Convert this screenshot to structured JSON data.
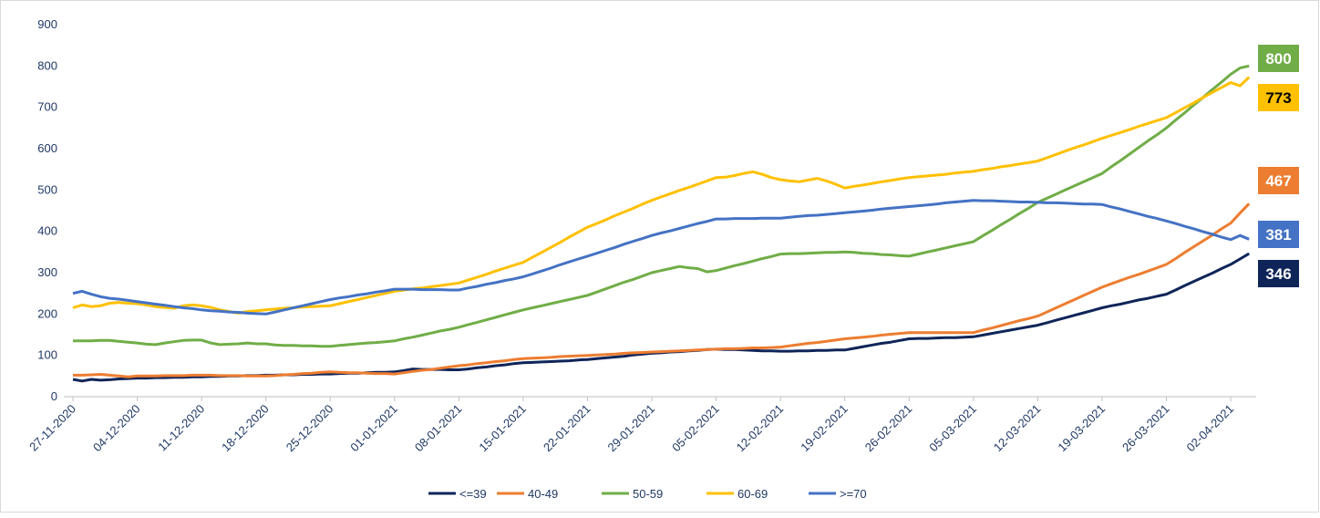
{
  "chart_data": {
    "type": "line",
    "categories": [
      "27-11-2020",
      null,
      null,
      null,
      null,
      null,
      null,
      "04-12-2020",
      null,
      null,
      null,
      null,
      null,
      null,
      "11-12-2020",
      null,
      null,
      null,
      null,
      null,
      null,
      "18-12-2020",
      null,
      null,
      null,
      null,
      null,
      null,
      "25-12-2020",
      null,
      null,
      null,
      null,
      null,
      null,
      "01-01-2021",
      null,
      null,
      null,
      null,
      null,
      null,
      "08-01-2021",
      null,
      null,
      null,
      null,
      null,
      null,
      "15-01-2021",
      null,
      null,
      null,
      null,
      null,
      null,
      "22-01-2021",
      null,
      null,
      null,
      null,
      null,
      null,
      "29-01-2021",
      null,
      null,
      null,
      null,
      null,
      null,
      "05-02-2021",
      null,
      null,
      null,
      null,
      null,
      null,
      "12-02-2021",
      null,
      null,
      null,
      null,
      null,
      null,
      "19-02-2021",
      null,
      null,
      null,
      null,
      null,
      null,
      "26-02-2021",
      null,
      null,
      null,
      null,
      null,
      null,
      "05-03-2021",
      null,
      null,
      null,
      null,
      null,
      null,
      "12-03-2021",
      null,
      null,
      null,
      null,
      null,
      null,
      "19-03-2021",
      null,
      null,
      null,
      null,
      null,
      null,
      "26-03-2021",
      null,
      null,
      null,
      null,
      null,
      null,
      "02-04-2021",
      null,
      null
    ],
    "series": [
      {
        "name": "<=39",
        "color": "#0f2559",
        "values": [
          42,
          38,
          42,
          40,
          41,
          43,
          44,
          45,
          45,
          46,
          46,
          47,
          47,
          48,
          48,
          49,
          49,
          50,
          50,
          51,
          51,
          52,
          52,
          53,
          53,
          54,
          54,
          55,
          55,
          56,
          57,
          57,
          58,
          59,
          59,
          60,
          63,
          67,
          66,
          66,
          66,
          65,
          65,
          67,
          70,
          72,
          75,
          77,
          80,
          82,
          83,
          84,
          85,
          86,
          87,
          89,
          90,
          92,
          94,
          96,
          98,
          101,
          103,
          105,
          106,
          108,
          109,
          111,
          112,
          114,
          115,
          114,
          114,
          113,
          112,
          111,
          111,
          110,
          110,
          111,
          111,
          112,
          112,
          113,
          113,
          117,
          121,
          125,
          129,
          132,
          136,
          140,
          141,
          141,
          142,
          143,
          143,
          144,
          145,
          149,
          153,
          157,
          161,
          165,
          169,
          173,
          179,
          185,
          191,
          197,
          203,
          209,
          215,
          220,
          224,
          229,
          234,
          238,
          243,
          248,
          258,
          269,
          279,
          289,
          299,
          310,
          320,
          333,
          346
        ]
      },
      {
        "name": "40-49",
        "color": "#ed7d31",
        "values": [
          52,
          52,
          53,
          54,
          52,
          50,
          48,
          50,
          50,
          50,
          51,
          51,
          51,
          52,
          52,
          52,
          51,
          51,
          51,
          50,
          50,
          50,
          51,
          53,
          54,
          56,
          57,
          59,
          60,
          59,
          58,
          58,
          57,
          56,
          56,
          55,
          58,
          61,
          64,
          66,
          69,
          72,
          75,
          77,
          80,
          82,
          85,
          87,
          90,
          92,
          93,
          94,
          95,
          97,
          98,
          99,
          100,
          101,
          102,
          103,
          105,
          106,
          107,
          108,
          109,
          110,
          111,
          112,
          113,
          114,
          115,
          116,
          116,
          117,
          118,
          118,
          119,
          120,
          123,
          126,
          129,
          131,
          134,
          137,
          140,
          142,
          144,
          146,
          149,
          151,
          153,
          155,
          155,
          155,
          155,
          155,
          155,
          155,
          155,
          161,
          166,
          172,
          178,
          184,
          189,
          195,
          205,
          215,
          225,
          235,
          245,
          255,
          265,
          273,
          281,
          289,
          296,
          304,
          312,
          320,
          334,
          349,
          363,
          377,
          391,
          406,
          420,
          444,
          467
        ]
      },
      {
        "name": "50-59",
        "color": "#70ad47",
        "values": [
          135,
          135,
          135,
          136,
          136,
          134,
          132,
          130,
          127,
          126,
          130,
          133,
          136,
          137,
          137,
          130,
          126,
          127,
          128,
          130,
          128,
          128,
          125,
          124,
          124,
          123,
          123,
          122,
          122,
          124,
          126,
          128,
          130,
          131,
          133,
          135,
          140,
          144,
          149,
          154,
          159,
          163,
          168,
          174,
          180,
          186,
          192,
          198,
          204,
          210,
          215,
          220,
          225,
          230,
          235,
          240,
          245,
          253,
          261,
          269,
          277,
          284,
          292,
          300,
          305,
          310,
          315,
          312,
          310,
          302,
          305,
          311,
          317,
          322,
          328,
          334,
          339,
          345,
          346,
          346,
          347,
          348,
          349,
          349,
          350,
          349,
          347,
          346,
          344,
          343,
          341,
          340,
          345,
          350,
          355,
          360,
          365,
          370,
          375,
          389,
          402,
          416,
          429,
          443,
          456,
          470,
          480,
          490,
          500,
          510,
          520,
          530,
          540,
          556,
          571,
          587,
          603,
          619,
          634,
          650,
          669,
          687,
          706,
          724,
          743,
          761,
          780,
          795,
          800
        ]
      },
      {
        "name": "60-69",
        "color": "#ffc000",
        "values": [
          215,
          222,
          218,
          220,
          226,
          228,
          226,
          225,
          222,
          218,
          216,
          214,
          220,
          222,
          220,
          216,
          210,
          206,
          202,
          206,
          208,
          210,
          212,
          214,
          215,
          217,
          218,
          219,
          220,
          225,
          230,
          235,
          240,
          245,
          250,
          255,
          258,
          261,
          263,
          266,
          269,
          272,
          275,
          282,
          289,
          296,
          304,
          311,
          318,
          325,
          337,
          349,
          361,
          373,
          386,
          398,
          410,
          419,
          428,
          438,
          447,
          456,
          466,
          475,
          483,
          491,
          499,
          506,
          514,
          522,
          530,
          531,
          535,
          540,
          544,
          538,
          530,
          525,
          522,
          520,
          524,
          528,
          522,
          514,
          505,
          509,
          512,
          516,
          520,
          523,
          527,
          530,
          532,
          534,
          536,
          538,
          541,
          543,
          545,
          549,
          552,
          556,
          559,
          563,
          566,
          570,
          578,
          586,
          594,
          602,
          609,
          617,
          625,
          632,
          639,
          646,
          654,
          661,
          668,
          675,
          687,
          699,
          711,
          724,
          736,
          748,
          760,
          752,
          773
        ]
      },
      {
        "name": ">=70",
        "color": "#4472c4",
        "values": [
          250,
          255,
          248,
          242,
          238,
          236,
          233,
          230,
          227,
          224,
          221,
          218,
          215,
          213,
          210,
          208,
          207,
          205,
          204,
          202,
          201,
          200,
          205,
          210,
          215,
          220,
          225,
          230,
          235,
          239,
          242,
          246,
          249,
          253,
          256,
          260,
          260,
          260,
          259,
          259,
          259,
          258,
          258,
          263,
          267,
          272,
          276,
          281,
          285,
          290,
          297,
          304,
          311,
          319,
          326,
          333,
          340,
          347,
          354,
          361,
          369,
          376,
          383,
          390,
          396,
          401,
          407,
          413,
          419,
          424,
          430,
          430,
          431,
          431,
          431,
          432,
          432,
          432,
          434,
          436,
          438,
          439,
          441,
          443,
          445,
          447,
          449,
          451,
          454,
          456,
          458,
          460,
          462,
          464,
          466,
          469,
          471,
          473,
          475,
          474,
          474,
          473,
          472,
          471,
          471,
          470,
          469,
          469,
          468,
          467,
          466,
          466,
          465,
          459,
          454,
          448,
          442,
          436,
          431,
          425,
          419,
          412,
          406,
          399,
          393,
          386,
          380,
          390,
          381
        ]
      }
    ],
    "ylim": [
      0,
      900
    ],
    "yticks": [
      0,
      100,
      200,
      300,
      400,
      500,
      600,
      700,
      800,
      900
    ],
    "grid": false,
    "legend": "bottom"
  }
}
